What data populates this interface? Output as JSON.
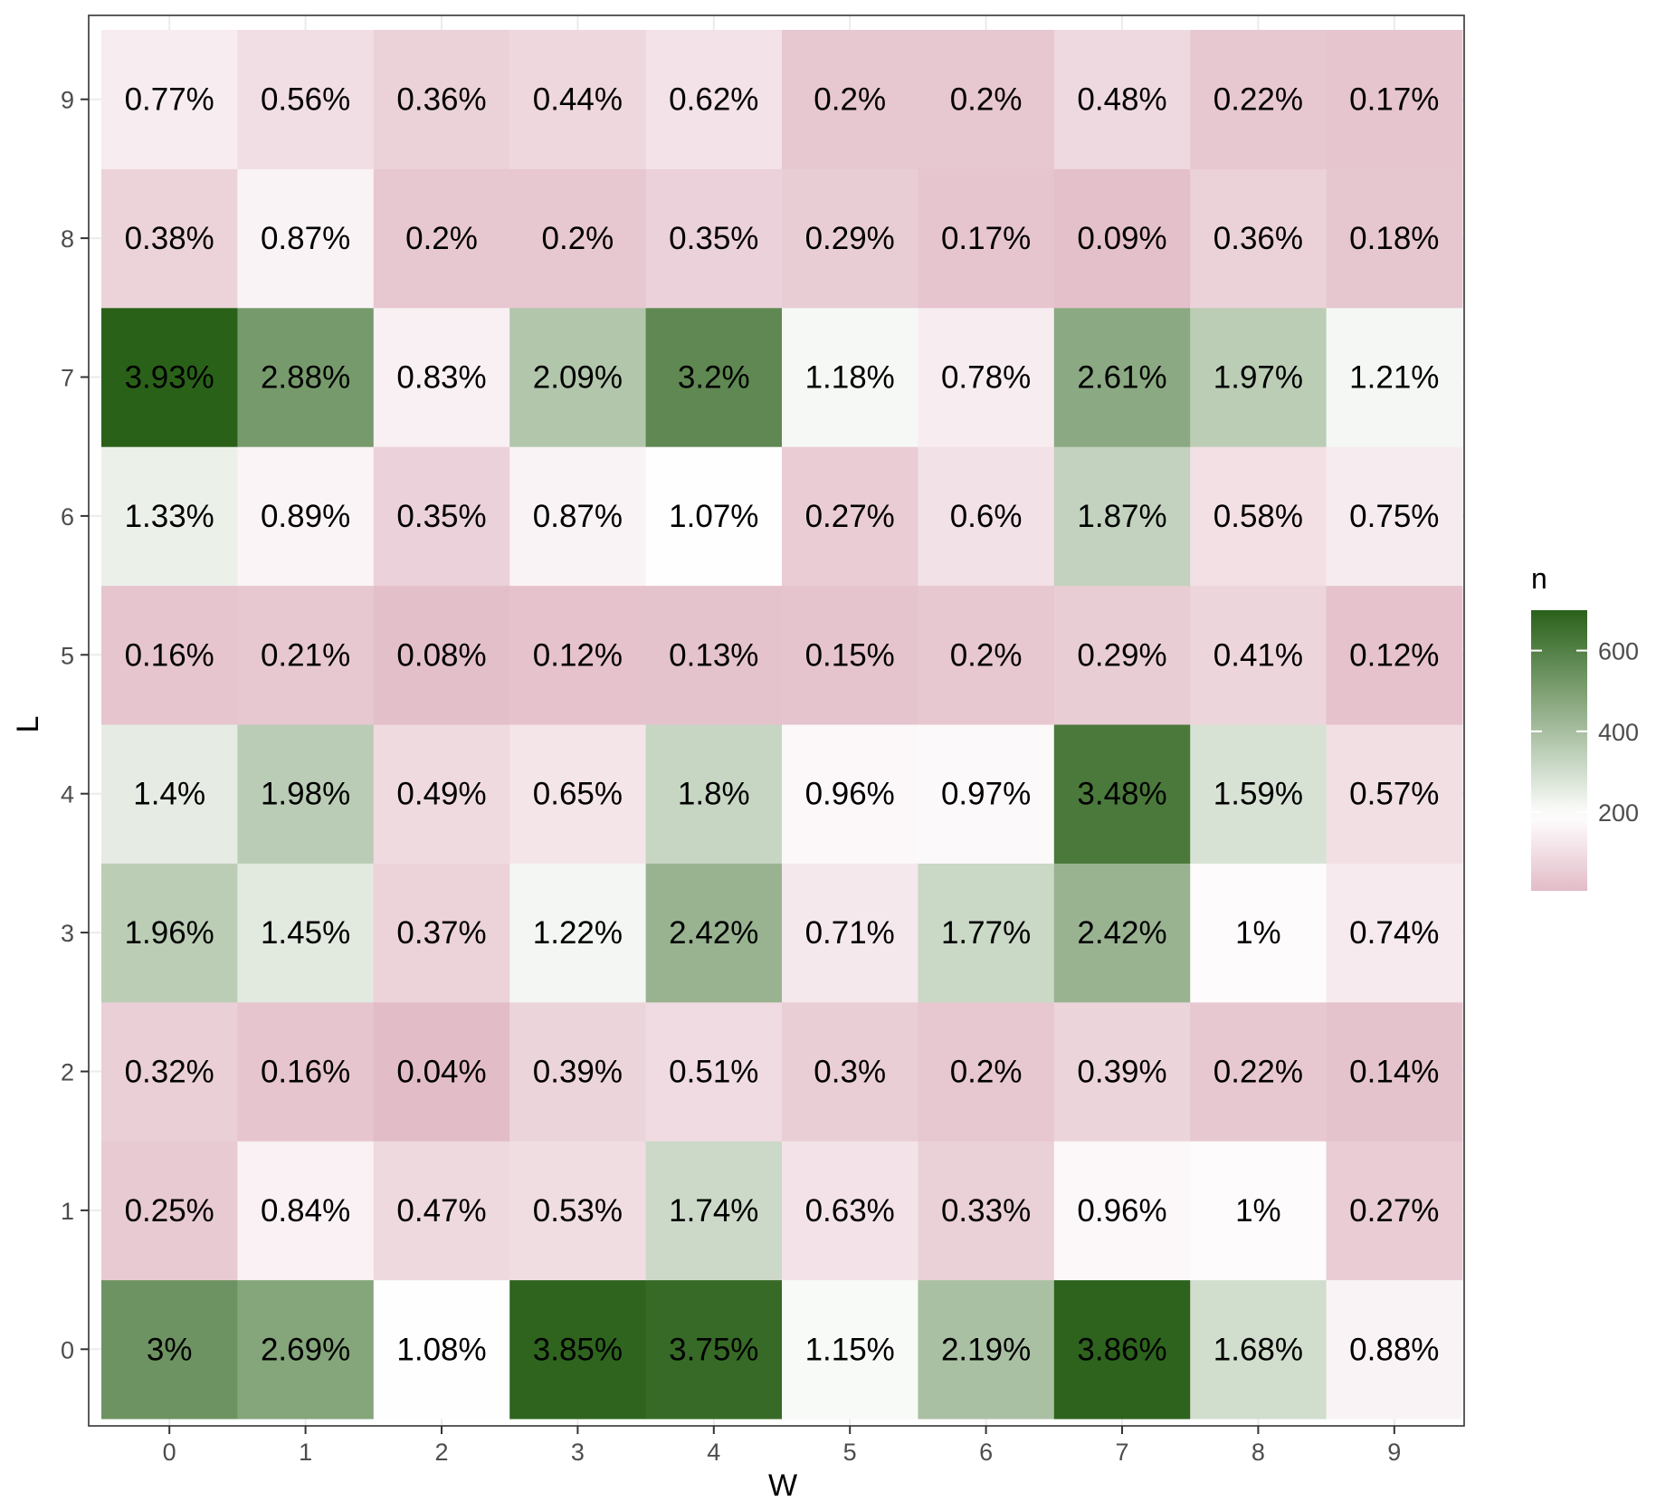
{
  "chart_data": {
    "type": "heatmap",
    "xlabel": "W",
    "ylabel": "L",
    "x_categories": [
      "0",
      "1",
      "2",
      "3",
      "4",
      "5",
      "6",
      "7",
      "8",
      "9"
    ],
    "y_categories": [
      "0",
      "1",
      "2",
      "3",
      "4",
      "5",
      "6",
      "7",
      "8",
      "9"
    ],
    "value_name": "n",
    "color_scale": {
      "low": "#e2bcc7",
      "mid": "#ffffff",
      "high": "#2a6119",
      "mid_value": 190,
      "min": 5,
      "max": 700,
      "legend_ticks": [
        200,
        400,
        600
      ]
    },
    "grid": true,
    "legend_position": "right",
    "cell_labels": [
      [
        "3%",
        "2.69%",
        "1.08%",
        "3.85%",
        "3.75%",
        "1.15%",
        "2.19%",
        "3.86%",
        "1.68%",
        "0.88%"
      ],
      [
        "0.25%",
        "0.84%",
        "0.47%",
        "0.53%",
        "1.74%",
        "0.63%",
        "0.33%",
        "0.96%",
        "1%",
        "0.27%"
      ],
      [
        "0.32%",
        "0.16%",
        "0.04%",
        "0.39%",
        "0.51%",
        "0.3%",
        "0.2%",
        "0.39%",
        "0.22%",
        "0.14%"
      ],
      [
        "1.96%",
        "1.45%",
        "0.37%",
        "1.22%",
        "2.42%",
        "0.71%",
        "1.77%",
        "2.42%",
        "1%",
        "0.74%"
      ],
      [
        "1.4%",
        "1.98%",
        "0.49%",
        "0.65%",
        "1.8%",
        "0.96%",
        "0.97%",
        "3.48%",
        "1.59%",
        "0.57%"
      ],
      [
        "0.16%",
        "0.21%",
        "0.08%",
        "0.12%",
        "0.13%",
        "0.15%",
        "0.2%",
        "0.29%",
        "0.41%",
        "0.12%"
      ],
      [
        "1.33%",
        "0.89%",
        "0.35%",
        "0.87%",
        "1.07%",
        "0.27%",
        "0.6%",
        "1.87%",
        "0.58%",
        "0.75%"
      ],
      [
        "3.93%",
        "2.88%",
        "0.83%",
        "2.09%",
        "3.2%",
        "1.18%",
        "0.78%",
        "2.61%",
        "1.97%",
        "1.21%"
      ],
      [
        "0.38%",
        "0.87%",
        "0.2%",
        "0.2%",
        "0.35%",
        "0.29%",
        "0.17%",
        "0.09%",
        "0.36%",
        "0.18%"
      ],
      [
        "0.77%",
        "0.56%",
        "0.36%",
        "0.44%",
        "0.62%",
        "0.2%",
        "0.2%",
        "0.48%",
        "0.22%",
        "0.17%"
      ]
    ],
    "values": [
      [
        538,
        482,
        194,
        690,
        672,
        206,
        393,
        692,
        301,
        158
      ],
      [
        45,
        151,
        84,
        95,
        312,
        113,
        59,
        172,
        179,
        48
      ],
      [
        57,
        29,
        7,
        70,
        91,
        54,
        36,
        70,
        39,
        25
      ],
      [
        351,
        260,
        66,
        219,
        434,
        127,
        317,
        434,
        179,
        133
      ],
      [
        251,
        355,
        88,
        117,
        323,
        172,
        174,
        624,
        285,
        102
      ],
      [
        29,
        38,
        14,
        22,
        23,
        27,
        36,
        52,
        73,
        22
      ],
      [
        238,
        160,
        63,
        156,
        192,
        48,
        108,
        335,
        104,
        134
      ],
      [
        704,
        516,
        149,
        375,
        573,
        211,
        140,
        468,
        353,
        217
      ],
      [
        68,
        156,
        36,
        36,
        63,
        52,
        30,
        16,
        65,
        32
      ],
      [
        138,
        100,
        65,
        79,
        111,
        36,
        36,
        86,
        39,
        30
      ]
    ]
  }
}
